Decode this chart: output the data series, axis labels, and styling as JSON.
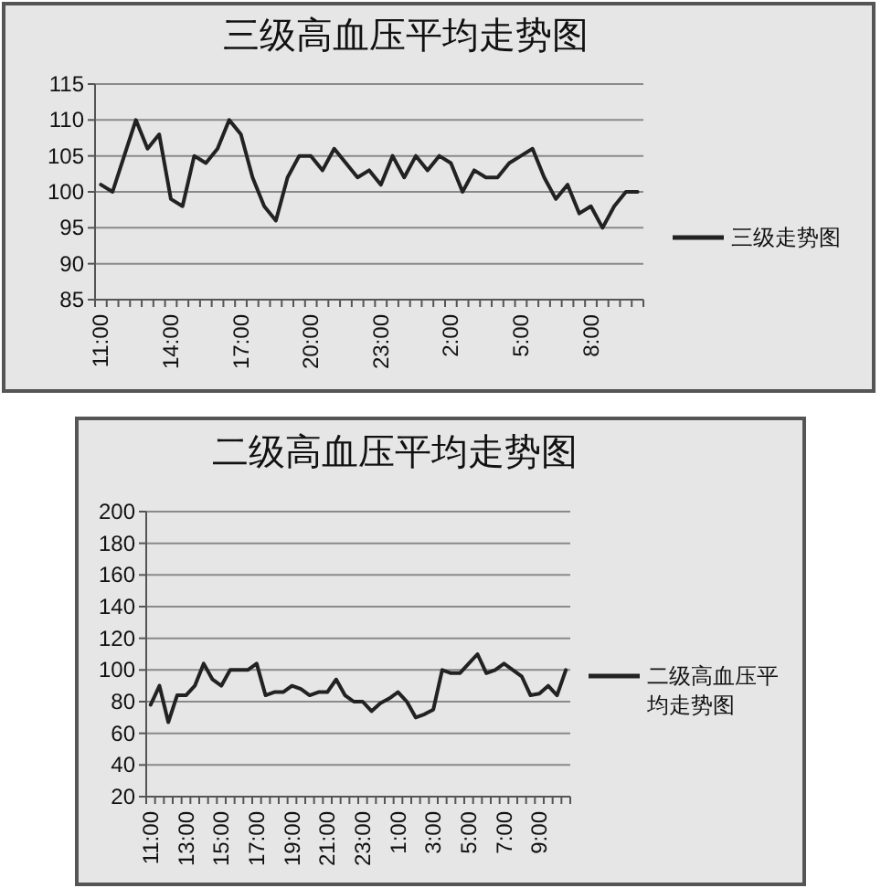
{
  "chart_data": [
    {
      "type": "line",
      "title": "三级高血压平均走势图",
      "categories": [
        "11:00",
        null,
        null,
        null,
        null,
        null,
        "14:00",
        null,
        null,
        null,
        null,
        null,
        "17:00",
        null,
        null,
        null,
        null,
        null,
        "20:00",
        null,
        null,
        null,
        null,
        null,
        "23:00",
        null,
        null,
        null,
        null,
        null,
        "2:00",
        null,
        null,
        null,
        null,
        null,
        "5:00",
        null,
        null,
        null,
        null,
        null,
        "8:00",
        null,
        null,
        null,
        null
      ],
      "series": [
        {
          "name": "三级走势图",
          "color": "#222222",
          "values": [
            101,
            100,
            105,
            110,
            106,
            108,
            99,
            98,
            105,
            104,
            106,
            110,
            108,
            102,
            98,
            96,
            102,
            105,
            105,
            103,
            106,
            104,
            102,
            103,
            101,
            105,
            102,
            105,
            103,
            105,
            104,
            100,
            103,
            102,
            102,
            104,
            105,
            106,
            102,
            99,
            101,
            97,
            98,
            95,
            98,
            100,
            100
          ]
        }
      ],
      "ylim": [
        85,
        115
      ],
      "yticks": [
        85,
        90,
        95,
        100,
        105,
        110,
        115
      ],
      "grid": "y",
      "legend": "right"
    },
    {
      "type": "line",
      "title": "二级高血压平均走势图",
      "categories": [
        "11:00",
        null,
        null,
        null,
        "13:00",
        null,
        null,
        null,
        "15:00",
        null,
        null,
        null,
        "17:00",
        null,
        null,
        null,
        "19:00",
        null,
        null,
        null,
        "21:00",
        null,
        null,
        null,
        "23:00",
        null,
        null,
        null,
        "1:00",
        null,
        null,
        null,
        "3:00",
        null,
        null,
        null,
        "5:00",
        null,
        null,
        null,
        "7:00",
        null,
        null,
        null,
        "9:00",
        null,
        null,
        null
      ],
      "series": [
        {
          "name": "二级高血压平均走势图",
          "color": "#222222",
          "values": [
            78,
            90,
            67,
            84,
            84,
            90,
            104,
            94,
            90,
            100,
            100,
            100,
            104,
            84,
            86,
            86,
            90,
            88,
            84,
            86,
            86,
            94,
            84,
            80,
            80,
            74,
            79,
            82,
            86,
            80,
            70,
            72,
            75,
            100,
            98,
            98,
            104,
            110,
            98,
            100,
            104,
            100,
            96,
            84,
            85,
            90,
            84,
            100
          ]
        }
      ],
      "ylim": [
        20,
        200
      ],
      "yticks": [
        20,
        40,
        60,
        80,
        100,
        120,
        140,
        160,
        180,
        200
      ],
      "grid": "y",
      "legend": "right"
    }
  ]
}
